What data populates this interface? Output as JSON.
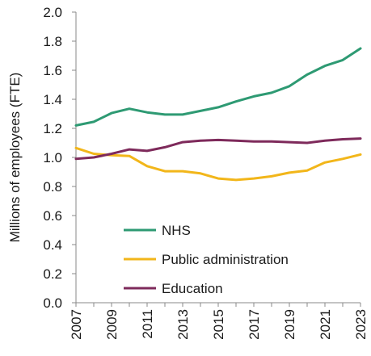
{
  "chart_data": {
    "type": "line",
    "title": "",
    "xlabel": "",
    "ylabel": "Millions of employees (FTE)",
    "ylim": [
      0,
      2.0
    ],
    "yticks": [
      "0.0",
      "0.2",
      "0.4",
      "0.6",
      "0.8",
      "1.0",
      "1.2",
      "1.4",
      "1.6",
      "1.8",
      "2.0"
    ],
    "xlim": [
      2007,
      2023
    ],
    "xticks": [
      "2007",
      "2009",
      "2011",
      "2013",
      "2015",
      "2017",
      "2019",
      "2021",
      "2023"
    ],
    "grid": false,
    "legend_position": "bottom-center",
    "x": [
      2007,
      2008,
      2009,
      2010,
      2011,
      2012,
      2013,
      2014,
      2015,
      2016,
      2017,
      2018,
      2019,
      2020,
      2021,
      2022,
      2023
    ],
    "series": [
      {
        "name": "NHS",
        "color": "#2e9a73",
        "values": [
          1.22,
          1.245,
          1.305,
          1.335,
          1.31,
          1.295,
          1.295,
          1.32,
          1.345,
          1.385,
          1.42,
          1.445,
          1.49,
          1.57,
          1.63,
          1.67,
          1.75
        ]
      },
      {
        "name": "Public administration",
        "color": "#f2b61a",
        "values": [
          1.065,
          1.025,
          1.015,
          1.01,
          0.94,
          0.905,
          0.905,
          0.89,
          0.855,
          0.845,
          0.855,
          0.87,
          0.895,
          0.91,
          0.965,
          0.99,
          1.02
        ]
      },
      {
        "name": "Education",
        "color": "#7e2a5b",
        "values": [
          0.99,
          1.0,
          1.025,
          1.055,
          1.045,
          1.07,
          1.105,
          1.115,
          1.12,
          1.115,
          1.11,
          1.11,
          1.105,
          1.1,
          1.115,
          1.125,
          1.13
        ]
      }
    ]
  }
}
